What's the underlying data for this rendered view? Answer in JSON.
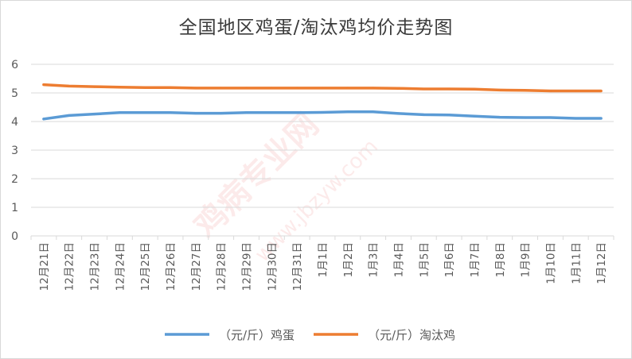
{
  "chart_data": {
    "type": "line",
    "title": "全国地区鸡蛋/淘汰鸡均价走势图",
    "xlabel": "",
    "ylabel": "",
    "ylim": [
      0,
      6
    ],
    "yticks": [
      0,
      1,
      2,
      3,
      4,
      5,
      6
    ],
    "grid": true,
    "legend_position": "bottom",
    "categories": [
      "12月21日",
      "12月22日",
      "12月23日",
      "12月24日",
      "12月25日",
      "12月26日",
      "12月27日",
      "12月28日",
      "12月29日",
      "12月30日",
      "12月31日",
      "1月1日",
      "1月2日",
      "1月3日",
      "1月4日",
      "1月5日",
      "1月6日",
      "1月7日",
      "1月8日",
      "1月9日",
      "1月10日",
      "1月11日",
      "1月12日"
    ],
    "series": [
      {
        "name": "（元/斤）鸡蛋",
        "color": "#5b9bd5",
        "values": [
          4.09,
          4.21,
          4.26,
          4.31,
          4.31,
          4.31,
          4.29,
          4.29,
          4.31,
          4.31,
          4.31,
          4.32,
          4.34,
          4.34,
          4.28,
          4.24,
          4.23,
          4.19,
          4.15,
          4.14,
          4.14,
          4.11,
          4.11
        ]
      },
      {
        "name": "（元/斤）淘汰鸡",
        "color": "#ed7d31",
        "values": [
          5.29,
          5.24,
          5.22,
          5.2,
          5.19,
          5.19,
          5.17,
          5.17,
          5.17,
          5.17,
          5.17,
          5.17,
          5.17,
          5.17,
          5.16,
          5.14,
          5.14,
          5.13,
          5.1,
          5.09,
          5.07,
          5.07,
          5.07
        ]
      }
    ]
  },
  "watermark": {
    "main": "鸡病专业网",
    "url": "www.jbzyw.com"
  }
}
